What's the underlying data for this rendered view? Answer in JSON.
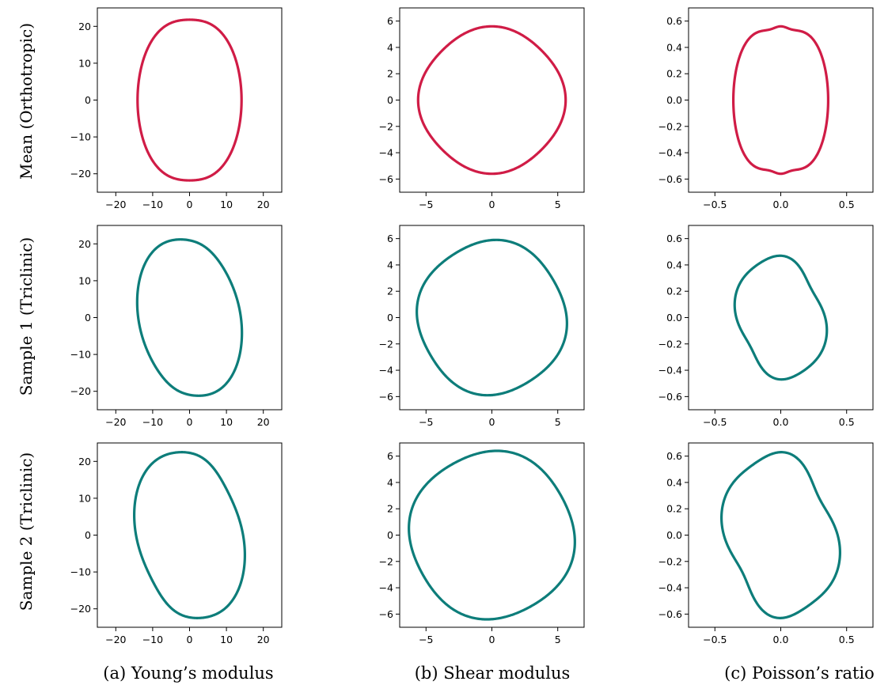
{
  "figure": {
    "row_labels": [
      "Mean (Orthotropic)",
      "Sample 1 (Triclinic)",
      "Sample 2 (Triclinic)"
    ],
    "column_captions": [
      "(a) Young’s modulus",
      "(b) Shear modulus",
      "(c) Poisson’s ratio"
    ],
    "colors": {
      "mean": "#d01c46",
      "sample": "#0d7d7a"
    }
  },
  "chart_data": [
    {
      "type": "line",
      "title": "",
      "row": 0,
      "col": 0,
      "color": "mean",
      "xlim": [
        -25,
        25
      ],
      "ylim": [
        -25,
        25
      ],
      "xticks": [
        -20,
        -10,
        0,
        10,
        20
      ],
      "xtick_labels": [
        "−20",
        "−10",
        "0",
        "10",
        "20"
      ],
      "yticks": [
        -20,
        -10,
        0,
        10,
        20
      ],
      "ytick_labels": [
        "−20",
        "−10",
        "0",
        "10",
        "20"
      ],
      "polar": {
        "n": [
          2
        ],
        "a": [
          3.5
        ],
        "phi": [
          0
        ]
      },
      "x": [
        14.1,
        10.5,
        5.5,
        0.0,
        -5.5,
        -10.5,
        -14.1,
        -14.0,
        -10.5,
        -5.5,
        0.0,
        5.5,
        10.5,
        14.1
      ],
      "y": [
        0.0,
        12.0,
        19.5,
        21.8,
        19.5,
        12.0,
        0.0,
        -3.0,
        -12.0,
        -19.5,
        -21.8,
        -19.5,
        -12.0,
        0.0
      ]
    },
    {
      "type": "line",
      "title": "",
      "row": 0,
      "col": 1,
      "color": "mean",
      "xlim": [
        -7,
        7
      ],
      "ylim": [
        -7,
        7
      ],
      "xticks": [
        -5,
        0,
        5
      ],
      "xtick_labels": [
        "−5",
        "0",
        "5"
      ],
      "yticks": [
        -6,
        -4,
        -2,
        0,
        2,
        4,
        6
      ],
      "ytick_labels": [
        "−6",
        "−4",
        "−2",
        "0",
        "2",
        "4",
        "6"
      ],
      "polar": {
        "n": [
          4
        ],
        "a": [
          0.55
        ],
        "phi": [
          0
        ]
      },
      "x": [
        5.6,
        5.0,
        3.5,
        0.0,
        -3.5,
        -5.0,
        -5.6,
        -5.0,
        -3.5,
        0.0,
        3.5,
        5.0,
        5.6
      ],
      "y": [
        0.0,
        3.5,
        5.0,
        5.6,
        5.0,
        3.5,
        0.0,
        -3.5,
        -5.0,
        -5.6,
        -5.0,
        -3.5,
        0.0
      ]
    },
    {
      "type": "line",
      "title": "",
      "row": 0,
      "col": 2,
      "color": "mean",
      "xlim": [
        -0.7,
        0.7
      ],
      "ylim": [
        -0.7,
        0.7
      ],
      "xticks": [
        -0.5,
        0.0,
        0.5
      ],
      "xtick_labels": [
        "−0.5",
        "0.0",
        "0.5"
      ],
      "yticks": [
        -0.6,
        -0.4,
        -0.2,
        0.0,
        0.2,
        0.4,
        0.6
      ],
      "ytick_labels": [
        "−0.6",
        "−0.4",
        "−0.2",
        "0.0",
        "0.2",
        "0.4",
        "0.6"
      ],
      "polar": {
        "n": [
          2,
          4
        ],
        "a": [
          8.5,
          1.8
        ],
        "phi": [
          0,
          0
        ]
      },
      "x": [
        0.36,
        0.35,
        0.3,
        0.0,
        -0.3,
        -0.35,
        -0.36,
        -0.35,
        -0.3,
        0.0,
        0.3,
        0.35,
        0.36
      ],
      "y": [
        0.0,
        0.25,
        0.45,
        0.56,
        0.45,
        0.25,
        0.0,
        -0.25,
        -0.45,
        -0.56,
        -0.45,
        -0.25,
        0.0
      ]
    },
    {
      "type": "line",
      "title": "",
      "row": 1,
      "col": 0,
      "color": "sample",
      "xlim": [
        -25,
        25
      ],
      "ylim": [
        -25,
        25
      ],
      "xticks": [
        -20,
        -10,
        0,
        10,
        20
      ],
      "xtick_labels": [
        "−20",
        "−10",
        "0",
        "10",
        "20"
      ],
      "yticks": [
        -20,
        -10,
        0,
        10,
        20
      ],
      "ytick_labels": [
        "−20",
        "−10",
        "0",
        "10",
        "20"
      ],
      "polar": {
        "n": [
          2,
          4
        ],
        "a": [
          3.2,
          0.5
        ],
        "phi": [
          0.22,
          0.5
        ]
      },
      "x": [
        14.2,
        11.5,
        3.0,
        -5.5,
        -12.5,
        -14.0,
        -11.0,
        -3.0,
        6.0,
        12.5,
        14.2
      ],
      "y": [
        0.0,
        11.0,
        21.2,
        17.5,
        8.0,
        -3.0,
        -15.0,
        -21.2,
        -17.0,
        -8.0,
        0.0
      ]
    },
    {
      "type": "line",
      "title": "",
      "row": 1,
      "col": 1,
      "color": "sample",
      "xlim": [
        -7,
        7
      ],
      "ylim": [
        -7,
        7
      ],
      "xticks": [
        -5,
        0,
        5
      ],
      "xtick_labels": [
        "−5",
        "0",
        "5"
      ],
      "yticks": [
        -6,
        -4,
        -2,
        0,
        2,
        4,
        6
      ],
      "ytick_labels": [
        "−6",
        "−4",
        "−2",
        "0",
        "2",
        "4",
        "6"
      ],
      "polar": {
        "n": [
          4,
          2
        ],
        "a": [
          0.6,
          0.2
        ],
        "phi": [
          0.3,
          0.8
        ]
      },
      "x": [
        5.7,
        5.3,
        3.0,
        -1.3,
        -4.8,
        -5.7,
        -5.2,
        -3.5,
        1.3,
        4.8,
        5.7
      ],
      "y": [
        0.0,
        3.8,
        5.3,
        5.9,
        4.2,
        -1.0,
        -4.0,
        -5.3,
        -5.9,
        -4.0,
        0.0
      ]
    },
    {
      "type": "line",
      "title": "",
      "row": 1,
      "col": 2,
      "color": "sample",
      "xlim": [
        -0.7,
        0.7
      ],
      "ylim": [
        -0.7,
        0.7
      ],
      "xticks": [
        -0.5,
        0.0,
        0.5
      ],
      "xtick_labels": [
        "−0.5",
        "0.0",
        "0.5"
      ],
      "yticks": [
        -0.6,
        -0.4,
        -0.2,
        0.0,
        0.2,
        0.4,
        0.6
      ],
      "ytick_labels": [
        "−0.6",
        "−0.4",
        "−0.2",
        "0.0",
        "0.2",
        "0.4",
        "0.6"
      ],
      "polar": {
        "n": [
          2,
          4
        ],
        "a": [
          2.2,
          1.2
        ],
        "phi": [
          0.5,
          0.3
        ]
      },
      "x": [
        0.33,
        0.28,
        -0.08,
        -0.25,
        -0.23,
        -0.35,
        -0.28,
        0.1,
        0.27,
        0.28,
        0.33
      ],
      "y": [
        0.0,
        0.35,
        0.47,
        0.3,
        0.1,
        -0.2,
        -0.35,
        -0.47,
        -0.3,
        -0.1,
        0.0
      ]
    },
    {
      "type": "line",
      "title": "",
      "row": 2,
      "col": 0,
      "color": "sample",
      "xlim": [
        -25,
        25
      ],
      "ylim": [
        -25,
        25
      ],
      "xticks": [
        -20,
        -10,
        0,
        10,
        20
      ],
      "xtick_labels": [
        "−20",
        "−10",
        "0",
        "10",
        "20"
      ],
      "yticks": [
        -20,
        -10,
        0,
        10,
        20
      ],
      "ytick_labels": [
        "−20",
        "−10",
        "0",
        "10",
        "20"
      ],
      "polar": {
        "n": [
          2,
          4
        ],
        "a": [
          3.0,
          0.7
        ],
        "phi": [
          0.3,
          0.5
        ]
      },
      "x": [
        15.0,
        12.0,
        4.0,
        -8.0,
        -14.5,
        -15.0,
        -11.0,
        -3.0,
        6.0,
        13.0,
        15.0
      ],
      "y": [
        0.0,
        15.0,
        22.5,
        16.0,
        5.0,
        -5.0,
        -18.0,
        -22.5,
        -17.0,
        -8.0,
        0.0
      ]
    },
    {
      "type": "line",
      "title": "",
      "row": 2,
      "col": 1,
      "color": "sample",
      "xlim": [
        -7,
        7
      ],
      "ylim": [
        -7,
        7
      ],
      "xticks": [
        -5,
        0,
        5
      ],
      "xtick_labels": [
        "−5",
        "0",
        "5"
      ],
      "yticks": [
        -6,
        -4,
        -2,
        0,
        2,
        4,
        6
      ],
      "ytick_labels": [
        "−6",
        "−4",
        "−2",
        "0",
        "2",
        "4",
        "6"
      ],
      "polar": {
        "n": [
          4,
          2
        ],
        "a": [
          0.55,
          0.15
        ],
        "phi": [
          0.35,
          0.6
        ]
      },
      "x": [
        6.3,
        5.5,
        2.5,
        -1.2,
        -4.5,
        -6.3,
        -5.8,
        -3.0,
        1.2,
        4.5,
        6.3
      ],
      "y": [
        0.0,
        3.5,
        5.5,
        6.4,
        4.0,
        -1.0,
        -3.8,
        -5.4,
        -6.4,
        -4.5,
        0.0
      ]
    },
    {
      "type": "line",
      "title": "",
      "row": 2,
      "col": 2,
      "color": "sample",
      "xlim": [
        -0.7,
        0.7
      ],
      "ylim": [
        -0.7,
        0.7
      ],
      "xticks": [
        -0.5,
        0.0,
        0.5
      ],
      "xtick_labels": [
        "−0.5",
        "0.0",
        "0.5"
      ],
      "yticks": [
        -0.6,
        -0.4,
        -0.2,
        0.0,
        0.2,
        0.4,
        0.6
      ],
      "ytick_labels": [
        "−0.6",
        "−0.4",
        "−0.2",
        "0.0",
        "0.2",
        "0.4",
        "0.6"
      ],
      "polar": {
        "n": [
          2,
          4
        ],
        "a": [
          2.2,
          1.5
        ],
        "phi": [
          0.5,
          0.3
        ]
      },
      "x": [
        0.42,
        0.38,
        -0.12,
        -0.28,
        -0.3,
        -0.45,
        -0.35,
        0.12,
        0.32,
        0.33,
        0.42
      ],
      "y": [
        0.1,
        0.38,
        0.63,
        0.5,
        0.15,
        -0.2,
        -0.42,
        -0.63,
        -0.4,
        -0.1,
        0.1
      ]
    }
  ]
}
